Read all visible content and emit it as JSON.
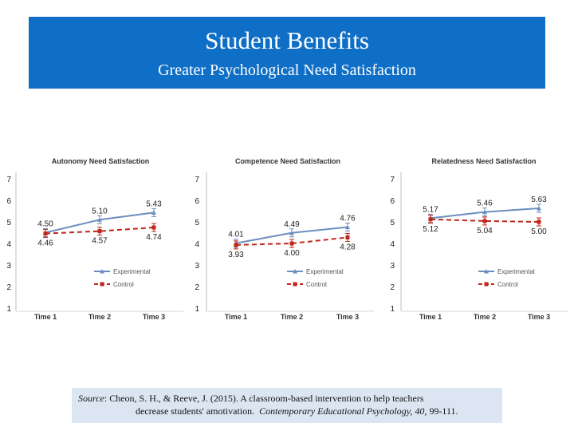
{
  "header": {
    "title": "Student Benefits",
    "subtitle": "Greater Psychological Need Satisfaction"
  },
  "colors": {
    "header_bg": "#0f6fc6",
    "experimental": "#6c8ebf",
    "control": "#c0261c",
    "source_bg": "#dce6f2"
  },
  "source": {
    "label": "Source",
    "line1_rest": ": Cheon, S. H., & Reeve, J. (2015).  A classroom-based intervention to help teachers",
    "line2_plain": "decrease students' amotivation.",
    "journal": "Contemporary Educational Psychology, 40,",
    "pages": "99-111."
  },
  "chart_data": [
    {
      "type": "line",
      "title": "Autonomy Need Satisfaction",
      "categories": [
        "Time 1",
        "Time 2",
        "Time 3"
      ],
      "yticks": [
        "7",
        "6",
        "5",
        "4",
        "3",
        "2",
        "1"
      ],
      "ylim": [
        1,
        7
      ],
      "legend_position": "bottom-right",
      "series": [
        {
          "name": "Experimental",
          "values": [
            4.5,
            5.1,
            5.43
          ],
          "labels": [
            "4.50",
            "5.10",
            "5.43"
          ]
        },
        {
          "name": "Control",
          "values": [
            4.46,
            4.57,
            4.74
          ],
          "labels": [
            "4.46",
            "4.57",
            "4.74"
          ]
        }
      ]
    },
    {
      "type": "line",
      "title": "Competence Need Satisfaction",
      "categories": [
        "Time 1",
        "Time 2",
        "Time 3"
      ],
      "yticks": [
        "7",
        "6",
        "5",
        "4",
        "3",
        "2",
        "1"
      ],
      "ylim": [
        1,
        7
      ],
      "legend_position": "bottom-right",
      "series": [
        {
          "name": "Experimental",
          "values": [
            4.01,
            4.49,
            4.76
          ],
          "labels": [
            "4.01",
            "4.49",
            "4.76"
          ]
        },
        {
          "name": "Control",
          "values": [
            3.93,
            4.0,
            4.28
          ],
          "labels": [
            "3.93",
            "4.00",
            "4.28"
          ]
        }
      ]
    },
    {
      "type": "line",
      "title": "Relatedness Need Satisfaction",
      "categories": [
        "Time 1",
        "Time 2",
        "Time 3"
      ],
      "yticks": [
        "7",
        "6",
        "5",
        "4",
        "3",
        "2",
        "1"
      ],
      "ylim": [
        1,
        7
      ],
      "legend_position": "bottom-right",
      "series": [
        {
          "name": "Experimental",
          "values": [
            5.17,
            5.46,
            5.63
          ],
          "labels": [
            "5.17",
            "5.46",
            "5.63"
          ]
        },
        {
          "name": "Control",
          "values": [
            5.12,
            5.04,
            5.0
          ],
          "labels": [
            "5.12",
            "5.04",
            "5.00"
          ]
        }
      ]
    }
  ]
}
